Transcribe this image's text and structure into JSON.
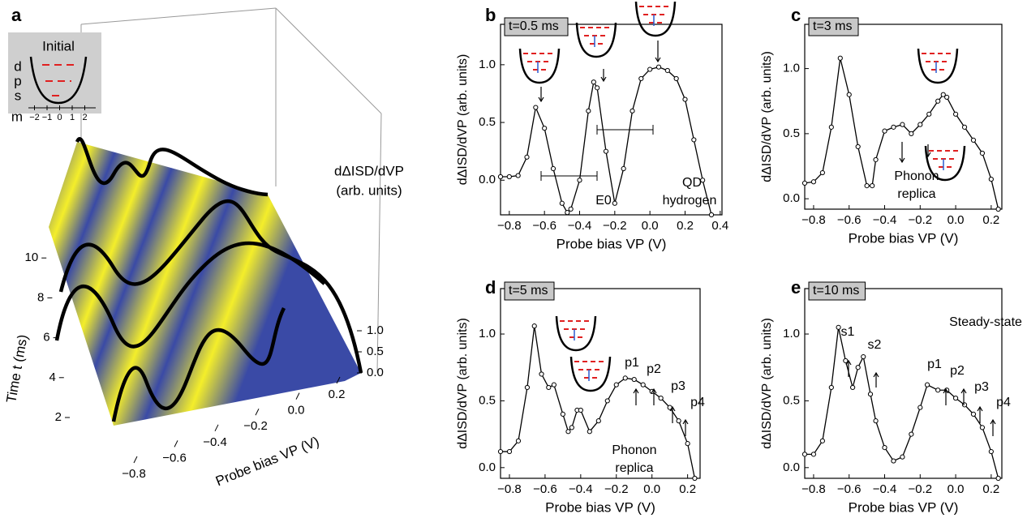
{
  "chart_data": [
    {
      "type": "surface3d",
      "panel": "a",
      "inset_title": "Initial",
      "inset_levels": [
        "d",
        "p",
        "s"
      ],
      "inset_axis_label": "m",
      "inset_ticks": [
        {
          "value": -2,
          "label": "−2"
        },
        {
          "value": -1,
          "label": "−1"
        },
        0,
        1,
        2
      ],
      "x_label": "Probe bias VP (V)",
      "y_label": "Time t (ms)",
      "z_label": "dΔISD/dVP",
      "z_label_2": "(arb. units)",
      "xticks": [
        {
          "value": -0.8,
          "label": "−0.8"
        },
        {
          "value": -0.6,
          "label": "−0.6"
        },
        {
          "value": -0.4,
          "label": "−0.4"
        },
        {
          "value": -0.2,
          "label": "−0.2"
        },
        {
          "value": 0,
          "label": "0.0"
        },
        0.2
      ],
      "yticks": [
        2,
        4,
        6,
        8,
        10
      ],
      "zticks": [
        {
          "value": 0,
          "label": "0.0"
        },
        0.5,
        {
          "value": 1,
          "label": "1.0"
        }
      ],
      "colors": [
        "#3a4aa6",
        "#f4ee2a"
      ]
    },
    {
      "type": "line",
      "panel": "b",
      "time_label": "t=0.5 ms",
      "x_label": "Probe bias VP (V)",
      "y_label": "dΔISD/dVP (arb. units)",
      "color": "#000000",
      "annotations": [
        {
          "text": "E0",
          "color": "#000000"
        },
        {
          "text": "QD",
          "color": "#3a5bb5"
        },
        {
          "text": "hydrogen",
          "color": "#3a5bb5"
        }
      ],
      "x": [
        -0.85,
        -0.8,
        -0.75,
        -0.7,
        -0.65,
        -0.6,
        -0.55,
        -0.5,
        -0.47,
        -0.45,
        -0.4,
        -0.35,
        -0.32,
        -0.3,
        -0.25,
        -0.2,
        -0.15,
        -0.1,
        -0.05,
        0,
        0.05,
        0.1,
        0.15,
        0.2,
        0.25,
        0.3,
        0.35
      ],
      "values": [
        0.03,
        0.03,
        0.04,
        0.2,
        0.63,
        0.45,
        0.1,
        -0.2,
        -0.28,
        -0.25,
        0,
        0.6,
        0.85,
        0.8,
        0.25,
        -0.2,
        0.1,
        0.6,
        0.88,
        0.96,
        0.98,
        0.95,
        0.88,
        0.7,
        0.35,
        0,
        -0.3
      ],
      "xlim": [
        -0.85,
        0.41
      ],
      "ylim": [
        -0.3,
        1.35
      ],
      "xticks": [
        {
          "value": -0.8,
          "label": "−0.8"
        },
        {
          "value": -0.6,
          "label": "−0.6"
        },
        {
          "value": -0.4,
          "label": "−0.4"
        },
        {
          "value": -0.2,
          "label": "−0.2"
        },
        {
          "value": 0,
          "label": "0.0"
        },
        0.2,
        0.4
      ],
      "yticks": [
        {
          "value": 0,
          "label": "0.0"
        },
        0.5,
        {
          "value": 1,
          "label": "1.0"
        }
      ]
    },
    {
      "type": "line",
      "panel": "c",
      "time_label": "t=3 ms",
      "x_label": "Probe bias VP (V)",
      "y_label": "dΔISD/dVP (arb. units)",
      "color": "#000000",
      "annotations": [
        {
          "text": "Phonon",
          "color": "#000000"
        },
        {
          "text": "replica",
          "color": "#000000"
        }
      ],
      "x": [
        -0.85,
        -0.8,
        -0.75,
        -0.7,
        -0.65,
        -0.6,
        -0.55,
        -0.5,
        -0.47,
        -0.45,
        -0.4,
        -0.35,
        -0.3,
        -0.25,
        -0.2,
        -0.15,
        -0.1,
        -0.07,
        -0.05,
        0,
        0.05,
        0.1,
        0.15,
        0.2,
        0.24
      ],
      "values": [
        0.12,
        0.13,
        0.2,
        0.55,
        1.08,
        0.8,
        0.4,
        0.1,
        0.1,
        0.3,
        0.52,
        0.55,
        0.57,
        0.5,
        0.57,
        0.65,
        0.75,
        0.8,
        0.78,
        0.65,
        0.55,
        0.45,
        0.35,
        0.15,
        -0.08
      ],
      "xlim": [
        -0.85,
        0.26
      ],
      "ylim": [
        -0.08,
        1.34
      ],
      "xticks": [
        {
          "value": -0.8,
          "label": "−0.8"
        },
        {
          "value": -0.6,
          "label": "−0.6"
        },
        {
          "value": -0.4,
          "label": "−0.4"
        },
        {
          "value": -0.2,
          "label": "−0.2"
        },
        {
          "value": 0,
          "label": "0.0"
        },
        0.2
      ],
      "yticks": [
        {
          "value": 0,
          "label": "0.0"
        },
        0.5,
        {
          "value": 1,
          "label": "1.0"
        }
      ]
    },
    {
      "type": "line",
      "panel": "d",
      "time_label": "t=5 ms",
      "x_label": "Probe bias VP (V)",
      "y_label": "dΔISD/dVP (arb. units)",
      "color": "#000000",
      "annotations": [
        {
          "text": "p1",
          "color": "#000000"
        },
        {
          "text": "p2",
          "color": "#000000"
        },
        {
          "text": "p3",
          "color": "#000000"
        },
        {
          "text": "p4",
          "color": "#000000"
        },
        {
          "text": "Phonon",
          "color": "#000000"
        },
        {
          "text": "replica",
          "color": "#000000"
        }
      ],
      "x": [
        -0.85,
        -0.8,
        -0.75,
        -0.7,
        -0.66,
        -0.62,
        -0.58,
        -0.55,
        -0.5,
        -0.47,
        -0.45,
        -0.42,
        -0.4,
        -0.35,
        -0.3,
        -0.25,
        -0.2,
        -0.15,
        -0.1,
        -0.05,
        0,
        0.05,
        0.1,
        0.15,
        0.2,
        0.24
      ],
      "values": [
        0.12,
        0.12,
        0.2,
        0.6,
        1.06,
        0.7,
        0.6,
        0.62,
        0.4,
        0.27,
        0.3,
        0.43,
        0.43,
        0.27,
        0.35,
        0.5,
        0.62,
        0.67,
        0.66,
        0.62,
        0.57,
        0.52,
        0.45,
        0.35,
        0.18,
        -0.08
      ],
      "xlim": [
        -0.85,
        0.27
      ],
      "ylim": [
        -0.08,
        1.34
      ],
      "xticks": [
        {
          "value": -0.8,
          "label": "−0.8"
        },
        {
          "value": -0.6,
          "label": "−0.6"
        },
        {
          "value": -0.4,
          "label": "−0.4"
        },
        {
          "value": -0.2,
          "label": "−0.2"
        },
        {
          "value": 0,
          "label": "0.0"
        },
        0.2
      ],
      "yticks": [
        {
          "value": 0,
          "label": "0.0"
        },
        0.5,
        {
          "value": 1,
          "label": "1.0"
        }
      ]
    },
    {
      "type": "line",
      "panel": "e",
      "time_label": "t=10 ms",
      "x_label": "Probe bias VP (V)",
      "y_label": "dΔISD/dVP (arb. units)",
      "color": "#000000",
      "annotations": [
        {
          "text": "s1",
          "color": "#000000"
        },
        {
          "text": "s2",
          "color": "#000000"
        },
        {
          "text": "Steady-state",
          "color": "#3a5bb5"
        },
        {
          "text": "p1",
          "color": "#000000"
        },
        {
          "text": "p2",
          "color": "#000000"
        },
        {
          "text": "p3",
          "color": "#000000"
        },
        {
          "text": "p4",
          "color": "#000000"
        }
      ],
      "x": [
        -0.85,
        -0.8,
        -0.75,
        -0.7,
        -0.66,
        -0.62,
        -0.58,
        -0.55,
        -0.52,
        -0.48,
        -0.45,
        -0.4,
        -0.35,
        -0.3,
        -0.25,
        -0.2,
        -0.16,
        -0.1,
        -0.05,
        0,
        0.05,
        0.1,
        0.15,
        0.2,
        0.24
      ],
      "values": [
        0.1,
        0.1,
        0.2,
        0.6,
        1.05,
        0.8,
        0.6,
        0.75,
        0.83,
        0.55,
        0.35,
        0.15,
        0.05,
        0.08,
        0.25,
        0.45,
        0.62,
        0.58,
        0.58,
        0.52,
        0.47,
        0.4,
        0.3,
        0.12,
        -0.08
      ],
      "xlim": [
        -0.85,
        0.26
      ],
      "ylim": [
        -0.08,
        1.34
      ],
      "xticks": [
        {
          "value": -0.8,
          "label": "−0.8"
        },
        {
          "value": -0.6,
          "label": "−0.6"
        },
        {
          "value": -0.4,
          "label": "−0.4"
        },
        {
          "value": -0.2,
          "label": "−0.2"
        },
        {
          "value": 0,
          "label": "0.0"
        },
        0.2
      ],
      "yticks": [
        {
          "value": 0,
          "label": "0.0"
        },
        0.5,
        {
          "value": 1,
          "label": "1.0"
        }
      ]
    }
  ]
}
